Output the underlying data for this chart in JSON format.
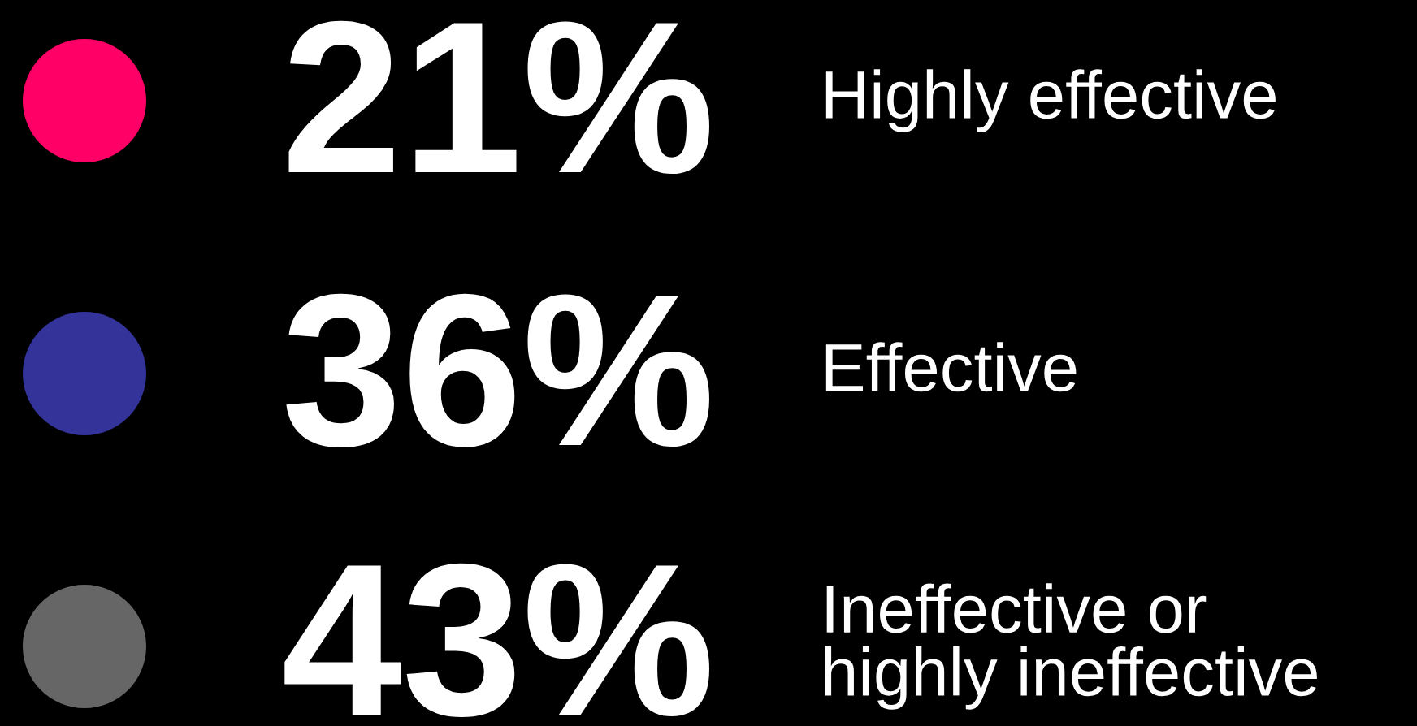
{
  "chart_data": {
    "type": "other",
    "categories": [
      "Highly effective",
      "Effective",
      "Ineffective or\nhighly ineffective"
    ],
    "values": [
      21,
      36,
      43
    ],
    "value_labels": [
      "21%",
      "36%",
      "43%"
    ],
    "colors": [
      "#ff0066",
      "#333399",
      "#666666"
    ]
  }
}
